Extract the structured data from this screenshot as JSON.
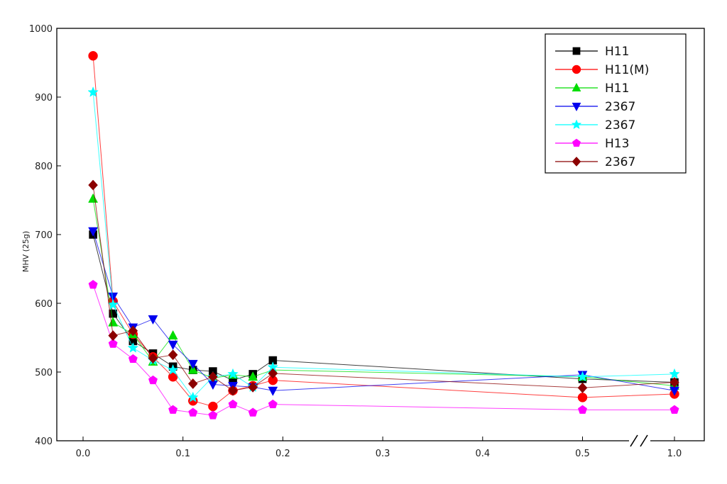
{
  "chart_data": {
    "type": "line",
    "ylabel": "MHV (25g)",
    "xlabel": "",
    "x": [
      0.01,
      0.03,
      0.05,
      0.07,
      0.09,
      0.11,
      0.13,
      0.15,
      0.17,
      0.19,
      0.5,
      1.0
    ],
    "ylim": [
      400,
      1000
    ],
    "yticks": [
      "400",
      "500",
      "600",
      "700",
      "800",
      "900",
      "1000"
    ],
    "xticks": [
      "0.0",
      "0.1",
      "0.2",
      "0.3",
      "0.4",
      "0.5",
      "1.0"
    ],
    "x_axis_break": "between 0.5 and 1.0",
    "grid": true,
    "legend_position": "top-right",
    "series": [
      {
        "name": "H11",
        "color": "#000000",
        "marker": "square",
        "values": [
          700,
          585,
          545,
          527,
          508,
          503,
          501,
          488,
          497,
          517,
          490,
          485
        ]
      },
      {
        "name": "H11(M)",
        "color": "#ff0000",
        "marker": "circle",
        "values": [
          960,
          603,
          555,
          522,
          493,
          458,
          450,
          473,
          480,
          488,
          463,
          468
        ]
      },
      {
        "name": "H11",
        "color": "#00dd00",
        "marker": "triangle-up",
        "values": [
          752,
          572,
          555,
          515,
          553,
          503,
          491,
          496,
          493,
          503,
          493,
          480
        ]
      },
      {
        "name": "2367",
        "color": "#0000ee",
        "marker": "triangle-down",
        "values": [
          705,
          610,
          565,
          577,
          540,
          512,
          482,
          480,
          478,
          473,
          496,
          473
        ]
      },
      {
        "name": "2367",
        "color": "#00ffff",
        "marker": "star",
        "values": [
          907,
          598,
          535,
          517,
          503,
          463,
          493,
          497,
          478,
          507,
          493,
          497
        ]
      },
      {
        "name": "H13",
        "color": "#ff00ff",
        "marker": "pentagon",
        "values": [
          627,
          541,
          519,
          488,
          445,
          441,
          437,
          453,
          441,
          453,
          445,
          445
        ]
      },
      {
        "name": "2367",
        "color": "#8b0000",
        "marker": "diamond",
        "values": [
          772,
          553,
          560,
          520,
          525,
          483,
          493,
          473,
          478,
          498,
          477,
          485
        ]
      }
    ]
  }
}
